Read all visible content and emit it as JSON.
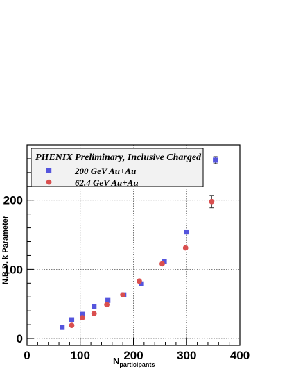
{
  "chart_data": {
    "type": "scatter",
    "title": "",
    "xlabel": "N",
    "xlabel_subscript": "participants",
    "ylabel": "N.B.D. k Parameter",
    "xlim": [
      0,
      400
    ],
    "ylim": [
      -10,
      280
    ],
    "x_ticks": [
      0,
      100,
      200,
      300,
      400
    ],
    "y_ticks": [
      0,
      100,
      200
    ],
    "grid": true,
    "legend_position": "top-left",
    "legend_header": "PHENIX Preliminary, Inclusive Charged",
    "series": [
      {
        "name": "200 GeV Au+Au",
        "marker": "square",
        "color": "#5555dd",
        "points": [
          {
            "x": 66,
            "y": 16
          },
          {
            "x": 84,
            "y": 27
          },
          {
            "x": 104,
            "y": 35
          },
          {
            "x": 126,
            "y": 46
          },
          {
            "x": 152,
            "y": 55
          },
          {
            "x": 182,
            "y": 63
          },
          {
            "x": 215,
            "y": 79
          },
          {
            "x": 258,
            "y": 111
          },
          {
            "x": 300,
            "y": 154
          },
          {
            "x": 354,
            "y": 258,
            "err": 5
          }
        ]
      },
      {
        "name": "62.4 GeV Au+Au",
        "marker": "circle",
        "color": "#d94f4f",
        "points": [
          {
            "x": 84,
            "y": 19
          },
          {
            "x": 104,
            "y": 30
          },
          {
            "x": 126,
            "y": 36
          },
          {
            "x": 150,
            "y": 49
          },
          {
            "x": 180,
            "y": 63
          },
          {
            "x": 211,
            "y": 83
          },
          {
            "x": 254,
            "y": 108
          },
          {
            "x": 298,
            "y": 131
          },
          {
            "x": 347,
            "y": 198,
            "err": 9
          }
        ]
      }
    ]
  }
}
